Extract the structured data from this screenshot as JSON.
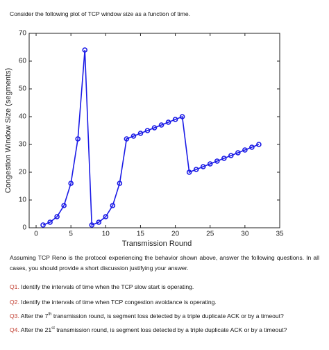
{
  "intro": "Consider the following plot of TCP window size as a function of time.",
  "chart_data": {
    "type": "line",
    "x_label": "Transmission Round",
    "y_label": "Congestion Window Size (segments)",
    "x": [
      1,
      2,
      3,
      4,
      5,
      6,
      7,
      8,
      9,
      10,
      11,
      12,
      13,
      14,
      15,
      16,
      17,
      18,
      19,
      20,
      21,
      22,
      23,
      24,
      25,
      26,
      27,
      28,
      29,
      30,
      31,
      32
    ],
    "series": [
      {
        "color": "#1a1ae6",
        "values": [
          1,
          2,
          4,
          8,
          16,
          32,
          64,
          1,
          2,
          4,
          8,
          16,
          32,
          33,
          34,
          35,
          36,
          37,
          38,
          39,
          40,
          20,
          21,
          22,
          23,
          24,
          25,
          26,
          27,
          28,
          29,
          30
        ]
      }
    ],
    "xlim": [
      -1,
      35
    ],
    "xticks": [
      0,
      5,
      10,
      15,
      20,
      25,
      30,
      35
    ],
    "ylim": [
      0,
      70
    ],
    "yticks": [
      0,
      10,
      20,
      30,
      40,
      50,
      60,
      70
    ],
    "grid": false
  },
  "paragraph": "Assuming TCP Reno is the protocol experiencing the behavior shown above, answer the following questions. In all cases, you should provide a short discussion justifying your answer.",
  "questions": [
    {
      "label": "Q1.",
      "text": "Identify the intervals of time when the TCP slow start is operating."
    },
    {
      "label": "Q2.",
      "text": "Identify the intervals of time when TCP congestion avoidance is operating."
    },
    {
      "label": "Q3.",
      "text": "After the 7",
      "sup": "th",
      "text_after": " transmission round, is segment loss detected by a triple duplicate ACK or by a timeout?"
    },
    {
      "label": "Q4.",
      "text": "After the 21",
      "sup": "st",
      "text_after": " transmission round, is segment loss detected by a triple duplicate ACK or by a timeout?"
    }
  ]
}
